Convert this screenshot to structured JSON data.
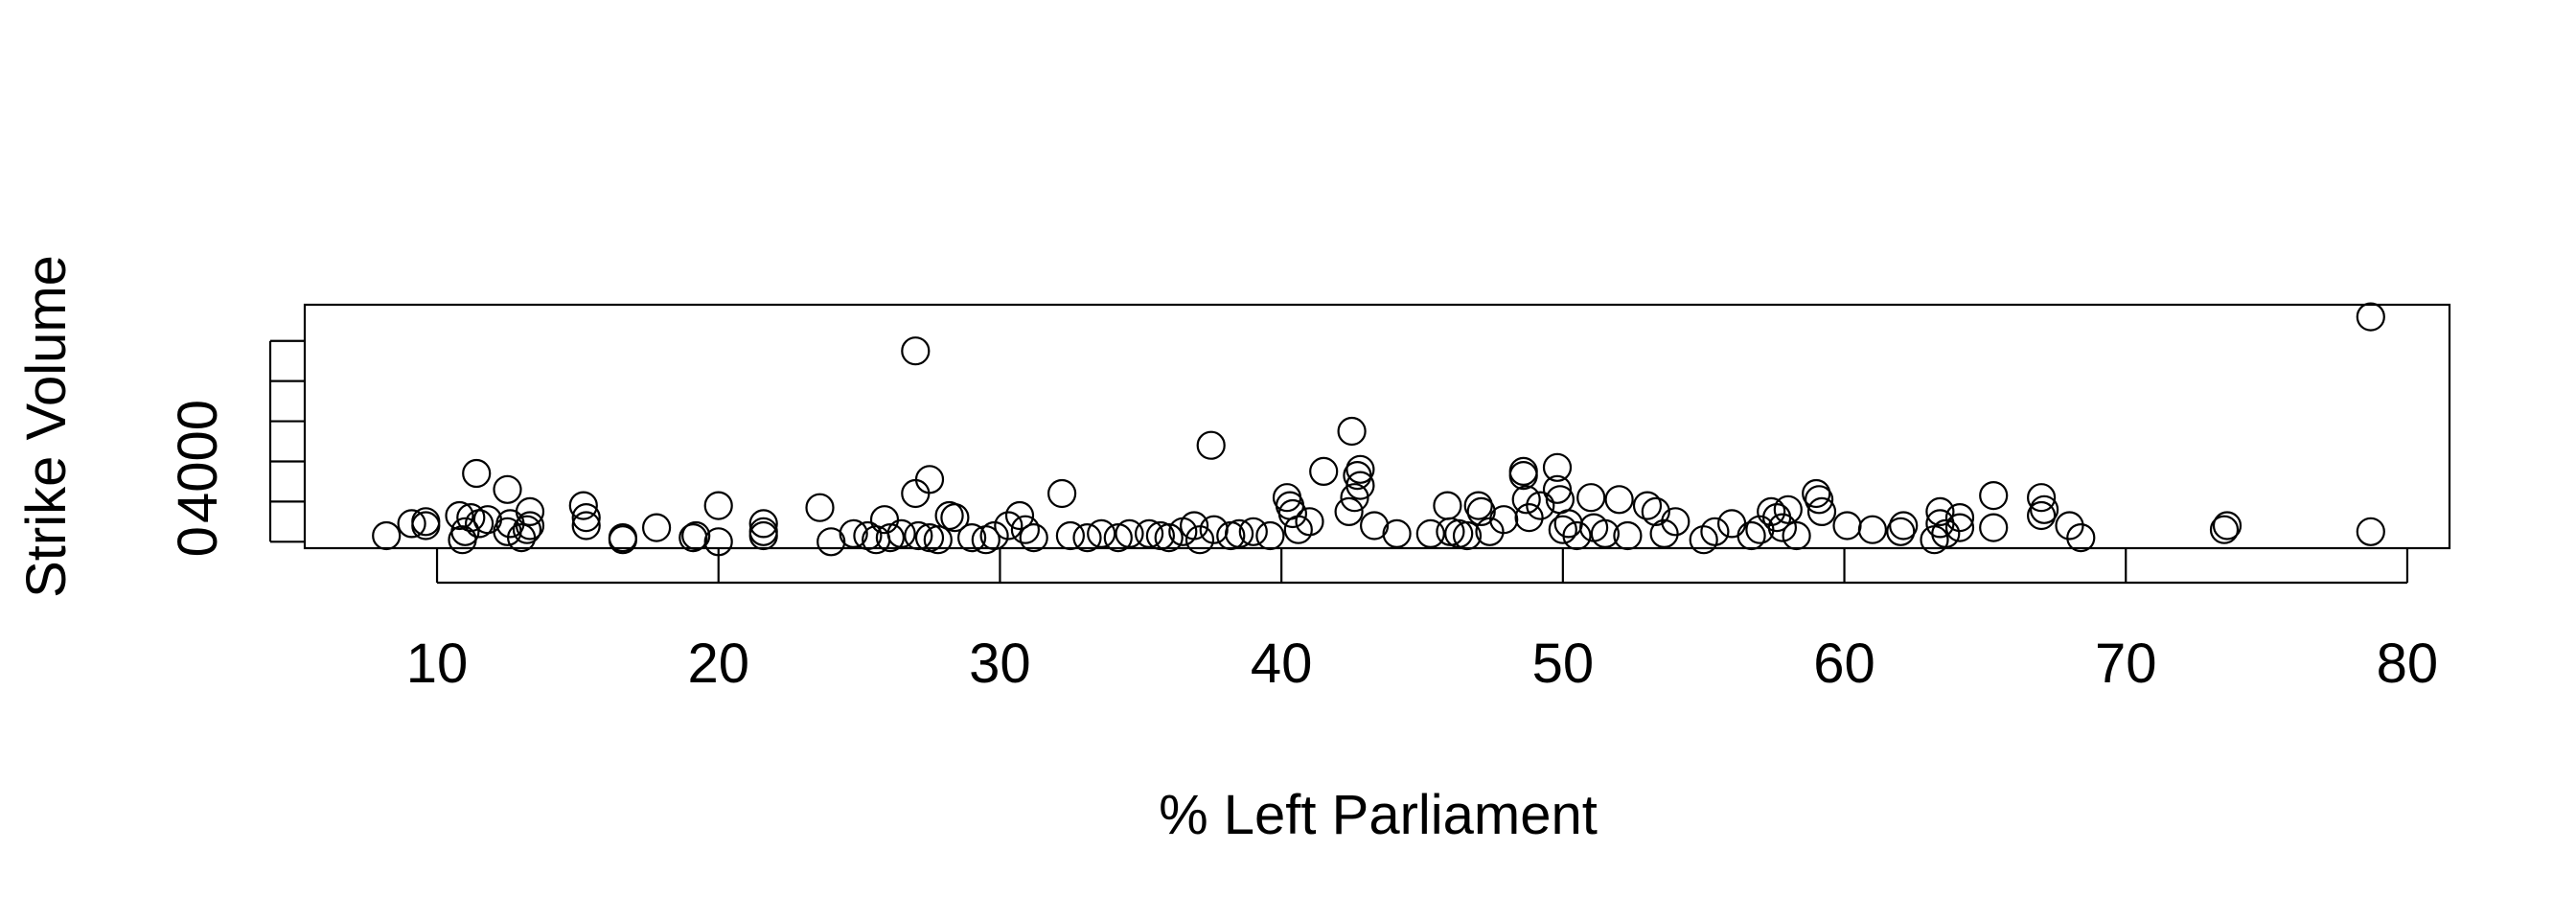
{
  "chart_data": {
    "type": "scatter",
    "title": "",
    "xlabel": "% Left Parliament",
    "ylabel": "Strike Volume",
    "xlim": [
      5.3,
      81.5
    ],
    "ylim": [
      -320,
      11800
    ],
    "x_ticks": [
      10,
      20,
      30,
      40,
      50,
      60,
      70,
      80
    ],
    "y_ticks": [
      0,
      2000,
      4000,
      6000,
      8000,
      10000
    ],
    "y_tick_labels": [
      "0",
      "",
      "4000",
      "",
      "",
      ""
    ],
    "grid": false,
    "legend": "none",
    "marker": "open-circle",
    "x": [
      8.2,
      9.1,
      9.6,
      9.6,
      10.8,
      10.9,
      11.0,
      11.2,
      11.4,
      11.5,
      11.8,
      12.5,
      12.5,
      12.6,
      13.0,
      13.2,
      13.3,
      13.3,
      15.2,
      15.3,
      15.3,
      16.6,
      16.6,
      17.8,
      19.1,
      19.2,
      20.0,
      20.0,
      21.6,
      21.6,
      21.6,
      23.6,
      24.0,
      24.8,
      25.3,
      25.6,
      25.9,
      26.1,
      26.5,
      27.0,
      27.0,
      27.1,
      27.5,
      27.5,
      27.8,
      28.2,
      28.4,
      29.0,
      29.5,
      29.8,
      30.3,
      30.7,
      30.9,
      31.2,
      32.2,
      32.5,
      33.1,
      33.6,
      34.2,
      34.6,
      35.3,
      35.7,
      36.0,
      36.5,
      36.9,
      37.1,
      37.5,
      37.6,
      38.2,
      38.5,
      39.0,
      39.6,
      40.2,
      40.3,
      40.4,
      40.6,
      41.0,
      41.5,
      42.4,
      42.5,
      42.6,
      42.7,
      42.8,
      42.8,
      43.3,
      44.1,
      45.3,
      45.9,
      46.0,
      46.3,
      46.6,
      47.0,
      47.1,
      47.4,
      47.9,
      48.6,
      48.6,
      48.7,
      48.8,
      49.2,
      49.8,
      49.8,
      49.9,
      50.0,
      50.2,
      50.5,
      51.0,
      51.1,
      51.5,
      52.0,
      52.3,
      53.0,
      53.3,
      53.6,
      54.0,
      55.0,
      55.4,
      56.0,
      56.7,
      57.0,
      57.4,
      57.6,
      57.8,
      58.0,
      58.3,
      59.0,
      59.1,
      59.2,
      60.1,
      61.0,
      62.0,
      62.1,
      63.2,
      63.4,
      63.4,
      63.6,
      64.1,
      64.1,
      65.3,
      65.3,
      67.0,
      67.0,
      67.1,
      68.0,
      68.4,
      73.5,
      73.6,
      78.7,
      78.7
    ],
    "y": [
      300,
      900,
      800,
      1000,
      1300,
      100,
      500,
      1200,
      3400,
      900,
      1100,
      2600,
      500,
      900,
      200,
      600,
      1500,
      800,
      1800,
      1200,
      800,
      200,
      100,
      700,
      200,
      300,
      1800,
      0,
      500,
      900,
      300,
      1700,
      0,
      400,
      300,
      100,
      1100,
      200,
      400,
      9500,
      2400,
      300,
      200,
      3100,
      100,
      1300,
      1200,
      200,
      100,
      300,
      800,
      1300,
      600,
      200,
      2400,
      300,
      200,
      400,
      200,
      400,
      400,
      300,
      200,
      500,
      800,
      100,
      4800,
      600,
      300,
      400,
      500,
      300,
      2200,
      1800,
      1400,
      600,
      1000,
      3500,
      1500,
      5500,
      2200,
      3300,
      3600,
      2800,
      800,
      400,
      400,
      1800,
      500,
      400,
      300,
      1800,
      1500,
      500,
      1100,
      3500,
      3300,
      2100,
      1200,
      1800,
      3700,
      2600,
      2100,
      600,
      900,
      300,
      2200,
      700,
      400,
      2100,
      300,
      1800,
      1500,
      400,
      1000,
      100,
      500,
      900,
      300,
      600,
      1500,
      1200,
      700,
      1600,
      300,
      2400,
      2100,
      1500,
      800,
      600,
      500,
      800,
      100,
      1500,
      900,
      400,
      1200,
      700,
      2300,
      700,
      1300,
      2200,
      1600,
      800,
      200,
      600,
      800,
      11200,
      500
    ]
  }
}
